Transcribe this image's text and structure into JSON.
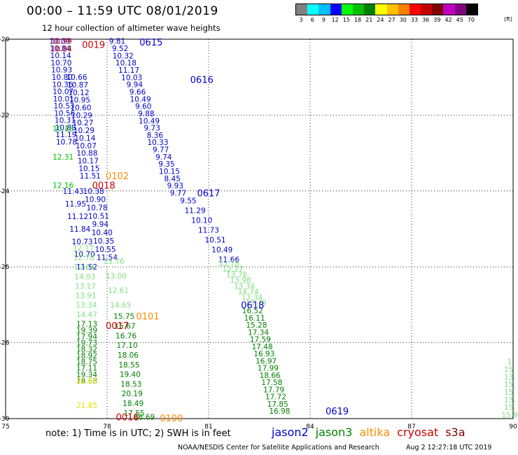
{
  "header": {
    "title": "00:00 – 11:59 UTC 08/01/2019",
    "subtitle": "12 hour collection of altimeter wave heights"
  },
  "legend": {
    "labels": [
      "3",
      "6",
      "9",
      "12",
      "15",
      "18",
      "21",
      "24",
      "27",
      "30",
      "33",
      "36",
      "39",
      "42",
      "45",
      "70"
    ],
    "unit": "(ft)",
    "colors": [
      "#808080",
      "#00ffff",
      "#00bfff",
      "#0000ff",
      "#00ff00",
      "#00c000",
      "#008000",
      "#ffff00",
      "#ffc000",
      "#ff8000",
      "#ff0000",
      "#c00000",
      "#800000",
      "#c000c0",
      "#800080",
      "#000000"
    ]
  },
  "footer": {
    "note": "note: 1) Time is in UTC; 2) SWH is in feet",
    "missions": [
      {
        "name": "jason2",
        "color": "#0000cc"
      },
      {
        "name": "jason3",
        "color": "#008000"
      },
      {
        "name": "altika",
        "color": "#ff8c00"
      },
      {
        "name": "cryosat",
        "color": "#cc0000"
      },
      {
        "name": "s3a",
        "color": "#800000"
      }
    ],
    "credit": "NOAA/NESDIS Center for Satellite Applications and Research",
    "timestamp": "Aug  2 12:27:18 UTC 2019"
  },
  "map": {
    "lon_range": [
      75,
      90
    ],
    "lat_range": [
      -20,
      -30
    ],
    "lon_ticks": [
      "75",
      "78",
      "81",
      "84",
      "87",
      "90"
    ],
    "lat_ticks": [
      "-20",
      "-22",
      "-24",
      "-26",
      "-28",
      "-30"
    ],
    "grid": "dotted",
    "pass_labels": [
      {
        "text": "0615",
        "lon": 79.3,
        "lat": -20.07,
        "color": "#0000cc"
      },
      {
        "text": "0019",
        "lon": 77.6,
        "lat": -20.14,
        "color": "#cc0000"
      },
      {
        "text": "0616",
        "lon": 80.8,
        "lat": -21.06,
        "color": "#0000cc"
      },
      {
        "text": "0102",
        "lon": 78.3,
        "lat": -23.6,
        "color": "#ff8c00"
      },
      {
        "text": "0018",
        "lon": 77.9,
        "lat": -23.85,
        "color": "#cc0000"
      },
      {
        "text": "0617",
        "lon": 81.0,
        "lat": -24.05,
        "color": "#0000cc"
      },
      {
        "text": "0618",
        "lon": 82.3,
        "lat": -27.0,
        "color": "#0000cc"
      },
      {
        "text": "0101",
        "lon": 79.2,
        "lat": -27.3,
        "color": "#ff8c00"
      },
      {
        "text": "0017",
        "lon": 78.3,
        "lat": -27.55,
        "color": "#cc0000"
      },
      {
        "text": "0619",
        "lon": 84.8,
        "lat": -29.8,
        "color": "#0000cc"
      },
      {
        "text": "0016",
        "lon": 78.6,
        "lat": -29.95,
        "color": "#cc0000"
      },
      {
        "text": "0100",
        "lon": 79.9,
        "lat": -29.98,
        "color": "#ff8c00"
      }
    ],
    "tracks": [
      {
        "name": "jason2-col1",
        "lon0": 76.6,
        "lat0": -20.05,
        "lon1": 76.8,
        "lat1": -22.7,
        "color": "#0000cc",
        "values": [
          "10.09",
          "10.84",
          "10.14",
          "10.70",
          "10.93",
          "10.80",
          "10.36",
          "10.07",
          "10.01",
          "10.53",
          "10.56",
          "10.31",
          "10.88",
          "11.19",
          "10.78"
        ]
      },
      {
        "name": "jason2-col2",
        "lon0": 77.1,
        "lat0": -21.0,
        "lon1": 77.5,
        "lat1": -23.6,
        "color": "#0000cc",
        "values": [
          "10.66",
          "10.87",
          "10.12",
          "10.95",
          "10.60",
          "10.29",
          "10.27",
          "10.29",
          "10.14",
          "10.07",
          "10.88",
          "10.17",
          "10.15",
          "11.51"
        ]
      },
      {
        "name": "cryosat-col1",
        "lon0": 76.65,
        "lat0": -20.05,
        "lon1": 76.65,
        "lat1": -20.25,
        "color": "#cc0000",
        "values": [
          "10.99",
          "10.84"
        ]
      },
      {
        "name": "jason3-col0",
        "lon0": 76.7,
        "lat0": -22.35,
        "lon1": 76.7,
        "lat1": -23.85,
        "color": "#00c000",
        "values": [
          "10.16",
          "12.31",
          "12.16"
        ]
      },
      {
        "name": "jason2-col3",
        "lon0": 77.0,
        "lat0": -24.0,
        "lon1": 77.4,
        "lat1": -26.0,
        "color": "#0000cc",
        "values": [
          "11.43",
          "11.95",
          "11.12",
          "11.84",
          "10.73",
          "10.70",
          "11.52"
        ]
      },
      {
        "name": "jason2-col4",
        "lon0": 77.6,
        "lat0": -24.0,
        "lon1": 78.0,
        "lat1": -25.75,
        "color": "#0000cc",
        "values": [
          "10.38",
          "10.90",
          "10.78",
          "10.51",
          "9.94",
          "10.40",
          "10.35",
          "10.55",
          "11.54"
        ]
      },
      {
        "name": "jason3-col5",
        "lon0": 77.3,
        "lat0": -25.5,
        "lon1": 77.4,
        "lat1": -27.25,
        "color": "#80e080",
        "values": [
          "12.17",
          "12.78",
          "12.64",
          "14.03",
          "13.17",
          "13.91",
          "13.34",
          "14.47"
        ]
      },
      {
        "name": "jason3-col6",
        "lon0": 78.2,
        "lat0": -25.85,
        "lon1": 78.4,
        "lat1": -27.0,
        "color": "#80e080",
        "values": [
          "13.76",
          "13.00",
          "12.61",
          "14.65"
        ]
      },
      {
        "name": "jason3-col7",
        "lon0": 77.4,
        "lat0": -27.5,
        "lon1": 77.4,
        "lat1": -29.0,
        "color": "#008000",
        "values": [
          "17.13",
          "19.39",
          "17.94",
          "19.73",
          "18.32",
          "18.92",
          "18.75",
          "17.11",
          "19.34",
          "18.68"
        ]
      },
      {
        "name": "jason3-col8",
        "lon0": 78.5,
        "lat0": -27.3,
        "lon1": 78.8,
        "lat1": -29.85,
        "color": "#008000",
        "values": [
          "15.75",
          "15.67",
          "16.76",
          "17.10",
          "18.06",
          "18.55",
          "19.40",
          "18.53",
          "20.19",
          "18.49",
          "17.55"
        ]
      },
      {
        "name": "jason2-col9",
        "lon0": 78.3,
        "lat0": -20.05,
        "lon1": 80.1,
        "lat1": -24.05,
        "color": "#0000cc",
        "values": [
          "9.81",
          "9.52",
          "10.32",
          "10.18",
          "11.17",
          "10.03",
          "9.94",
          "9.66",
          "10.49",
          "9.60",
          "9.88",
          "10.49",
          "9.73",
          "8.36",
          "10.33",
          "9.77",
          "9.74",
          "9.35",
          "10.15",
          "8.45",
          "9.93",
          "9.77"
        ]
      },
      {
        "name": "jason2-col10",
        "lon0": 80.4,
        "lat0": -24.25,
        "lon1": 81.6,
        "lat1": -25.8,
        "color": "#0000cc",
        "values": [
          "9.55",
          "11.29",
          "10.10",
          "11.73",
          "10.51",
          "10.49",
          "11.66"
        ]
      },
      {
        "name": "jason3-col11",
        "lon0": 81.6,
        "lat0": -25.9,
        "lon1": 82.4,
        "lat1": -26.95,
        "color": "#80e080",
        "values": [
          "13.78",
          "12.27",
          "13.78",
          "13.98",
          "13.34",
          "14.74",
          "13.34",
          "13.79"
        ]
      },
      {
        "name": "jason3-col12",
        "lon0": 82.3,
        "lat0": -27.15,
        "lon1": 83.1,
        "lat1": -29.8,
        "color": "#008000",
        "values": [
          "16.52",
          "16.11",
          "15.28",
          "17.34",
          "17.59",
          "17.48",
          "16.93",
          "16.97",
          "17.99",
          "18.66",
          "17.58",
          "17.79",
          "17.72",
          "17.85",
          "16.98"
        ]
      },
      {
        "name": "altika-col13",
        "lon0": 77.4,
        "lat0": -29.0,
        "lon1": 77.4,
        "lat1": -29.65,
        "color": "#e0e000",
        "values": [
          "21.66",
          "21.85"
        ]
      },
      {
        "name": "jason3-col14",
        "lon0": 79.1,
        "lat0": -29.95,
        "lon1": 79.1,
        "lat1": -29.95,
        "color": "#008000",
        "values": [
          "16.69"
        ]
      },
      {
        "name": "jason3-edge",
        "lon0": 89.9,
        "lat0": -28.5,
        "lon1": 89.9,
        "lat1": -29.9,
        "color": "#80e080",
        "values": [
          "1",
          "15.",
          "13.",
          "15.",
          "15.",
          "13.",
          "15.",
          "15.9"
        ]
      }
    ]
  }
}
